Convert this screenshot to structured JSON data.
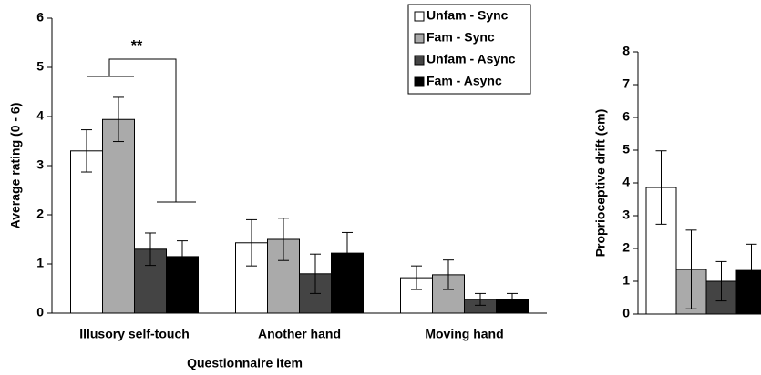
{
  "chart_data": [
    {
      "type": "bar",
      "y_label": "Average rating (0 - 6)",
      "x_label": "Questionnaire item",
      "annotation": "**",
      "categories": [
        "Illusory self-touch",
        "Another hand",
        "Moving hand"
      ],
      "series": [
        {
          "name": "Unfam - Sync",
          "color": "#ffffff",
          "values": [
            3.3,
            1.43,
            0.72
          ],
          "errors": [
            0.43,
            0.47,
            0.24
          ]
        },
        {
          "name": "Fam - Sync",
          "color": "#aaaaaa",
          "values": [
            3.94,
            1.5,
            0.78
          ],
          "errors": [
            0.45,
            0.43,
            0.3
          ]
        },
        {
          "name": "Unfam - Async",
          "color": "#444444",
          "values": [
            1.3,
            0.8,
            0.28
          ],
          "errors": [
            0.33,
            0.4,
            0.12
          ]
        },
        {
          "name": "Fam - Async",
          "color": "#000000",
          "values": [
            1.15,
            1.22,
            0.28
          ],
          "errors": [
            0.32,
            0.42,
            0.12
          ]
        }
      ],
      "ylim": [
        0,
        6
      ],
      "yticks": [
        0,
        1,
        2,
        3,
        4,
        5,
        6
      ],
      "legend": "top-right"
    },
    {
      "type": "bar",
      "y_label": "Proprioceptive drift (cm)",
      "series": [
        {
          "color": "#ffffff",
          "values": [
            3.86
          ],
          "errors": [
            1.12
          ]
        },
        {
          "color": "#aaaaaa",
          "values": [
            1.36
          ],
          "errors": [
            1.2
          ]
        },
        {
          "color": "#444444",
          "values": [
            1.0
          ],
          "errors": [
            0.6
          ]
        },
        {
          "color": "#000000",
          "values": [
            1.33
          ],
          "errors": [
            0.8
          ]
        }
      ],
      "ylim": [
        0,
        8
      ],
      "yticks": [
        0,
        1,
        2,
        3,
        4,
        5,
        6,
        7,
        8
      ]
    }
  ]
}
